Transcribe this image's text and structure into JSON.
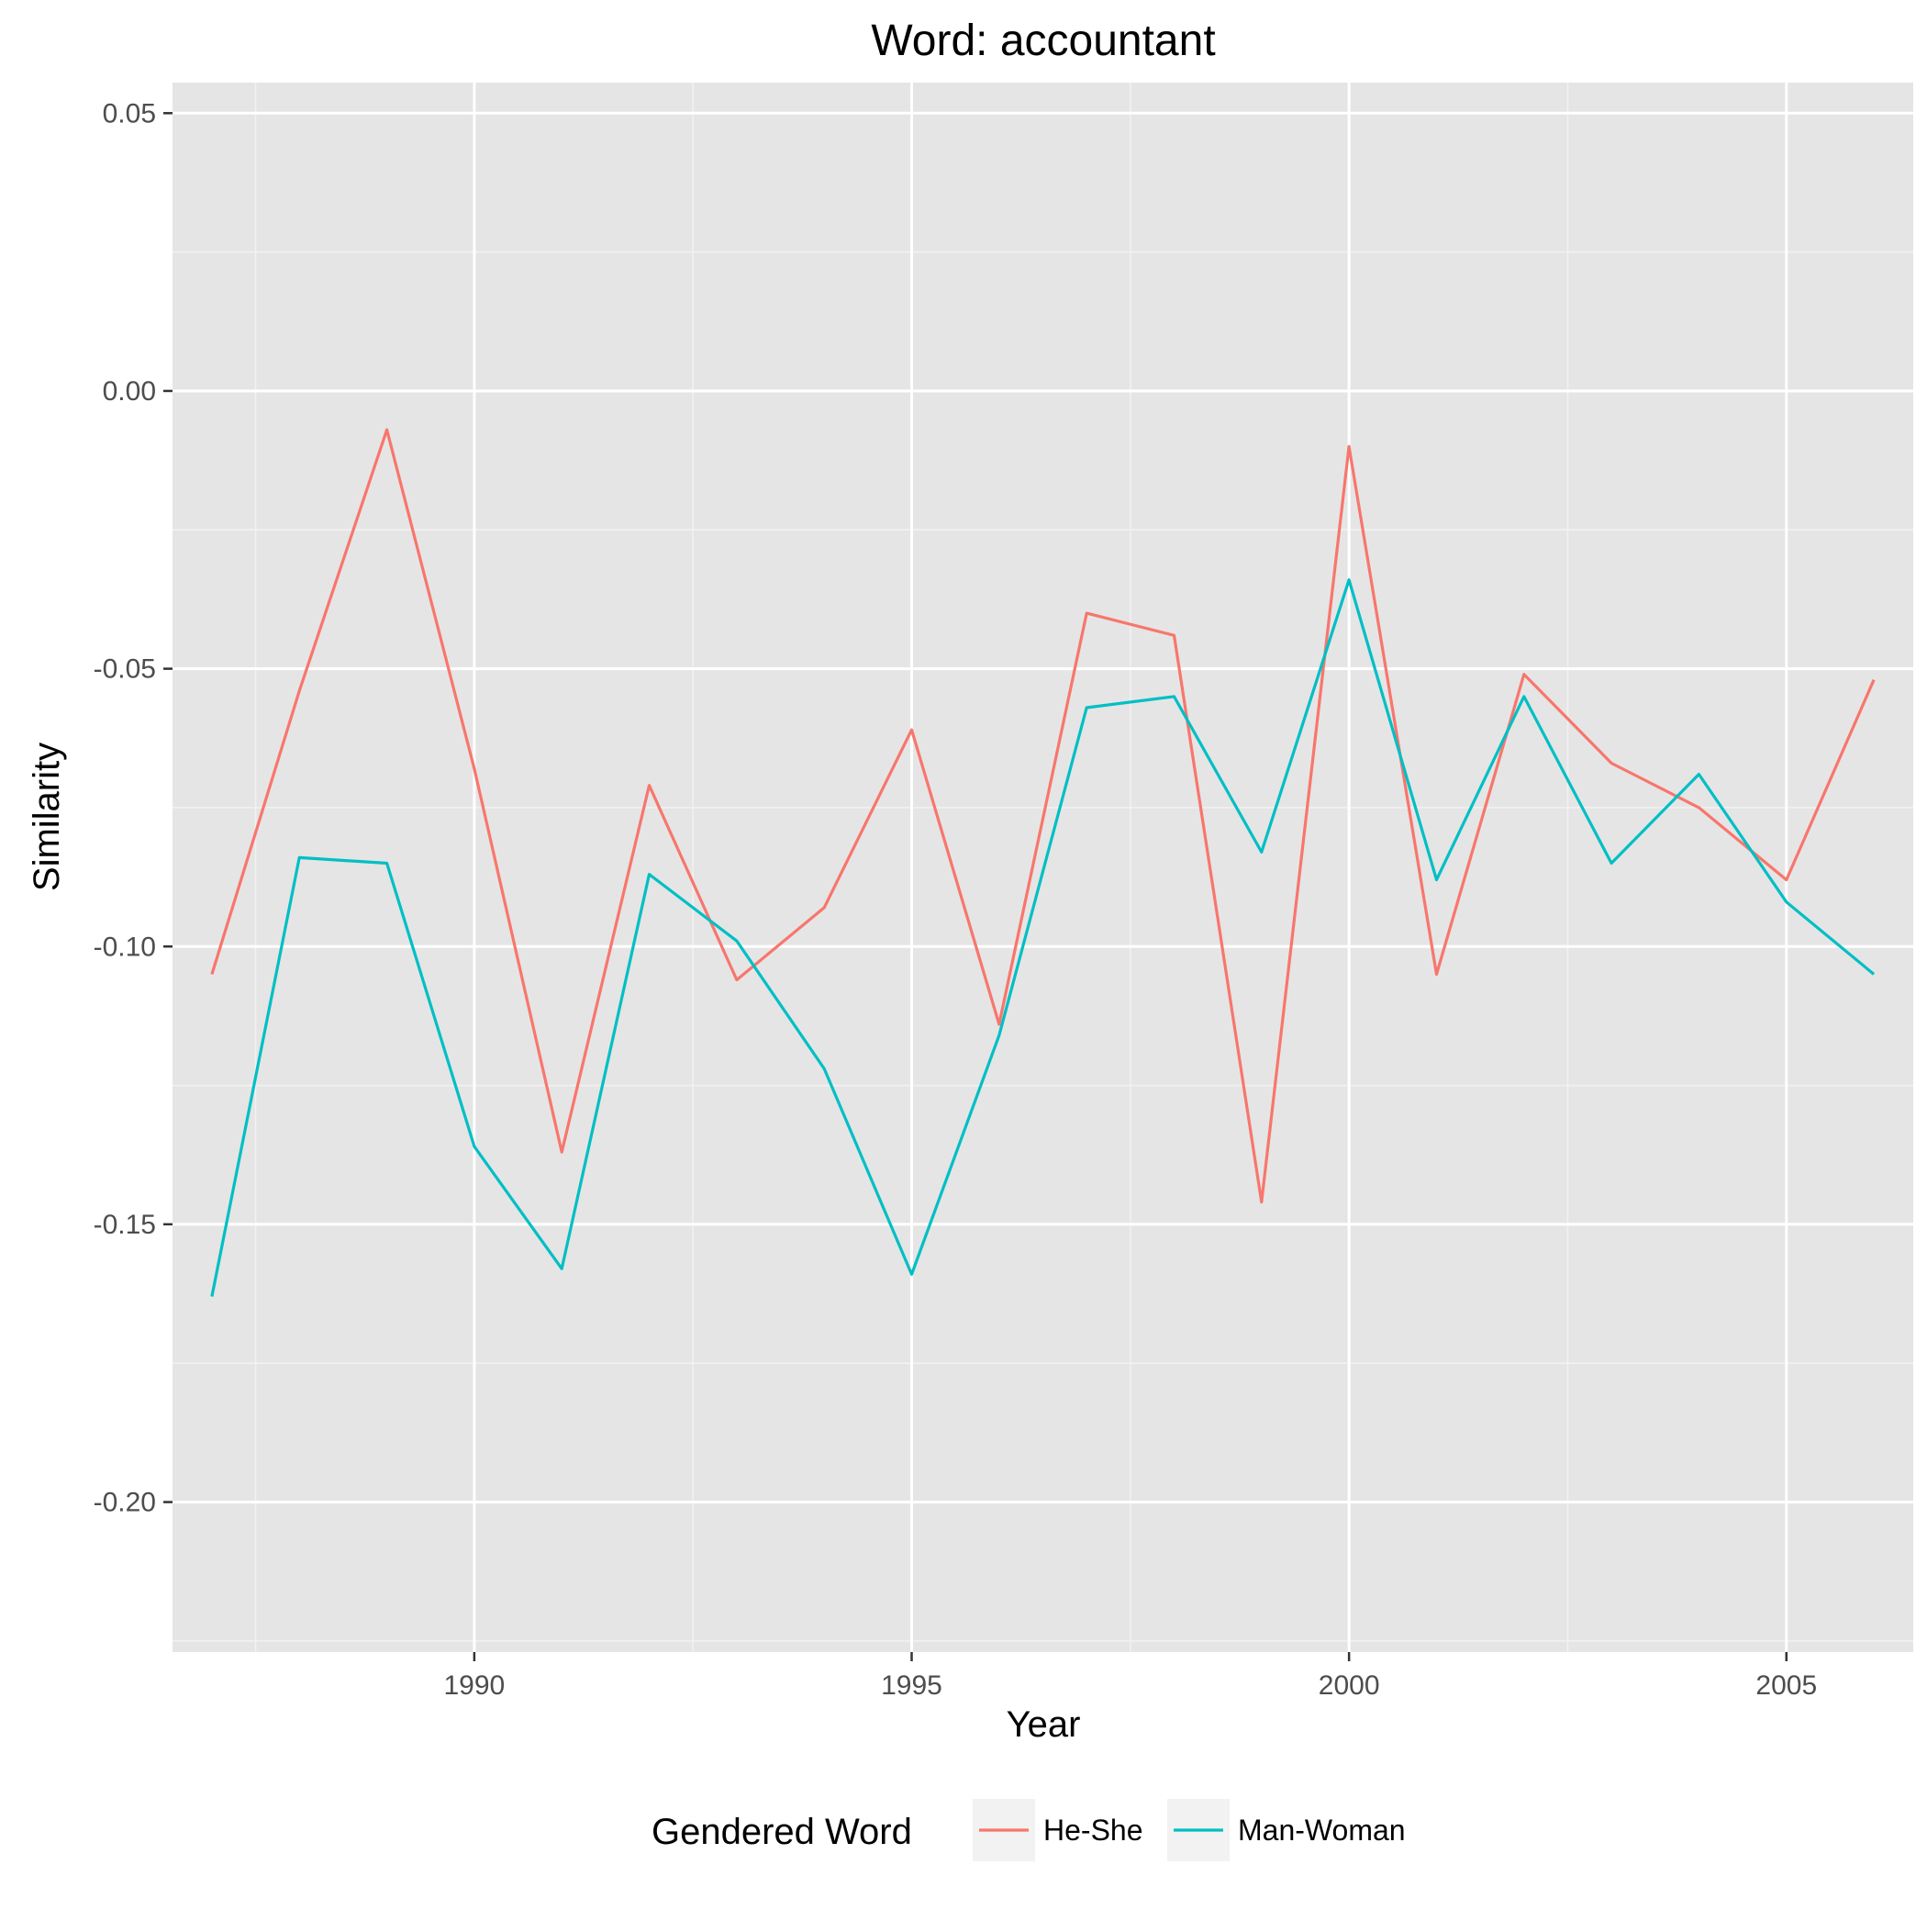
{
  "chart_data": {
    "type": "line",
    "title": "Word: accountant",
    "xlabel": "Year",
    "ylabel": "Similarity",
    "xlim": [
      1986.55,
      2006.45
    ],
    "ylim": [
      -0.227,
      0.0555
    ],
    "x_ticks": [
      1990,
      1995,
      2000,
      2005
    ],
    "x_tick_labels": [
      "1990",
      "1995",
      "2000",
      "2005"
    ],
    "x_minor_ticks": [
      1987.5,
      1992.5,
      1997.5,
      2002.5
    ],
    "y_ticks": [
      -0.2,
      -0.15,
      -0.1,
      -0.05,
      0.0,
      0.05
    ],
    "y_tick_labels": [
      "-0.20",
      "-0.15",
      "-0.10",
      "-0.05",
      "0.00",
      "0.05"
    ],
    "y_minor_ticks": [
      -0.225,
      -0.175,
      -0.125,
      -0.075,
      -0.025,
      0.025
    ],
    "grid": true,
    "legend": {
      "title": "Gendered Word",
      "position": "bottom"
    },
    "x": [
      1987,
      1988,
      1989,
      1990,
      1991,
      1992,
      1993,
      1994,
      1995,
      1996,
      1997,
      1998,
      1999,
      2000,
      2001,
      2002,
      2003,
      2004,
      2005,
      2006
    ],
    "series": [
      {
        "name": "He-She",
        "color": "#F8766D",
        "values": [
          -0.105,
          -0.054,
          -0.007,
          -0.068,
          -0.137,
          -0.071,
          -0.106,
          -0.093,
          -0.061,
          -0.114,
          -0.04,
          -0.044,
          -0.146,
          -0.01,
          -0.105,
          -0.051,
          -0.067,
          -0.075,
          -0.088,
          -0.052
        ]
      },
      {
        "name": "Man-Woman",
        "color": "#00BFC4",
        "values": [
          -0.163,
          -0.084,
          -0.085,
          -0.136,
          -0.158,
          -0.087,
          -0.099,
          -0.122,
          -0.159,
          -0.116,
          -0.057,
          -0.055,
          -0.083,
          -0.034,
          -0.088,
          -0.055,
          -0.085,
          -0.069,
          -0.092,
          -0.105
        ]
      }
    ]
  },
  "style": {
    "panel_bg": "#E5E5E5",
    "grid_major": "#FFFFFF",
    "grid_minor": "#F2F2F2",
    "key_bg": "#F2F2F2",
    "tick_color": "#333333"
  }
}
